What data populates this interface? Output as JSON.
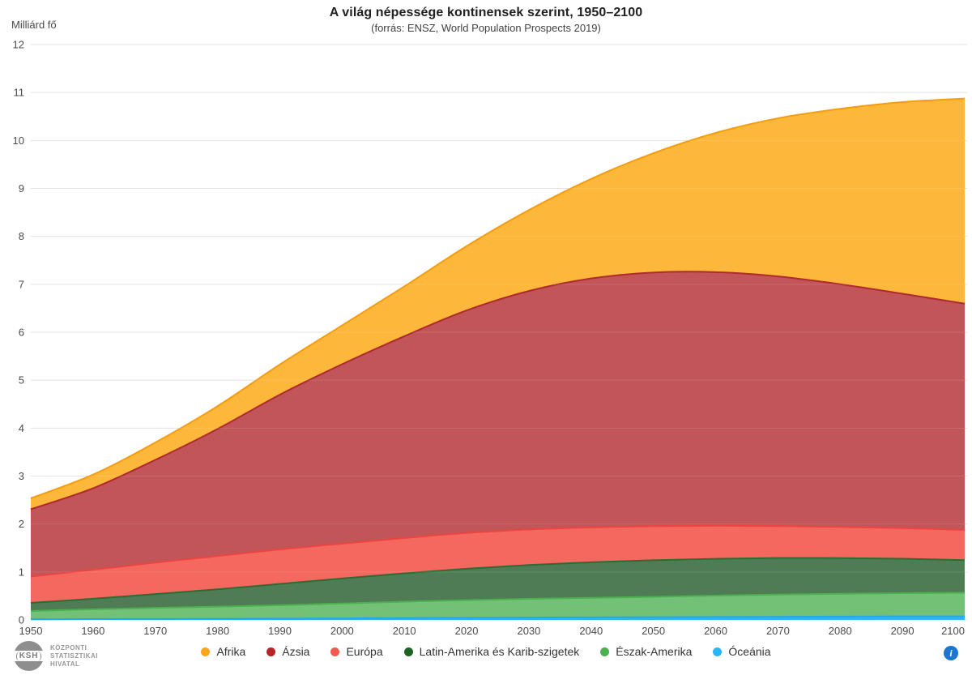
{
  "header": {
    "title": "A világ népessége kontinensek szerint, 1950–2100",
    "subtitle": "(forrás: ENSZ, World Population Prospects 2019)"
  },
  "y_axis": {
    "title": "Milliárd fő",
    "ticks": [
      0,
      1,
      2,
      3,
      4,
      5,
      6,
      7,
      8,
      9,
      10,
      11,
      12
    ]
  },
  "x_axis": {
    "ticks": [
      1950,
      1960,
      1970,
      1980,
      1990,
      2000,
      2010,
      2020,
      2030,
      2040,
      2050,
      2060,
      2070,
      2080,
      2090,
      2100
    ]
  },
  "chart_data": {
    "type": "area",
    "stacked": true,
    "title": "A világ népessége kontinensek szerint, 1950–2100",
    "subtitle": "(forrás: ENSZ, World Population Prospects 2019)",
    "xlabel": "",
    "ylabel": "Milliárd fő",
    "ylim": [
      0,
      12
    ],
    "grid": true,
    "legend_position": "bottom",
    "x": [
      1950,
      1960,
      1970,
      1980,
      1990,
      2000,
      2010,
      2020,
      2030,
      2040,
      2050,
      2060,
      2070,
      2080,
      2090,
      2100
    ],
    "series_bottom_to_top": [
      {
        "id": "oceania",
        "name": "Óceánia",
        "fill": "#2FB5F2",
        "line": "#25A9E6",
        "legend_color": "#29B6F6",
        "values": [
          0.013,
          0.016,
          0.02,
          0.023,
          0.027,
          0.031,
          0.037,
          0.043,
          0.048,
          0.053,
          0.057,
          0.062,
          0.066,
          0.07,
          0.073,
          0.075
        ]
      },
      {
        "id": "eszak-amerika",
        "name": "Észak-Amerika",
        "fill": "#73C177",
        "line": "#4CAF50",
        "legend_color": "#4CAF50",
        "values": [
          0.173,
          0.205,
          0.231,
          0.254,
          0.28,
          0.312,
          0.343,
          0.369,
          0.391,
          0.408,
          0.425,
          0.445,
          0.462,
          0.475,
          0.485,
          0.491
        ]
      },
      {
        "id": "latin-amerika",
        "name": "Latin-Amerika és Karib-szigetek",
        "fill": "#4F7C54",
        "line": "#2E6B33",
        "legend_color": "#1D6322",
        "values": [
          0.169,
          0.22,
          0.287,
          0.361,
          0.443,
          0.522,
          0.591,
          0.654,
          0.706,
          0.742,
          0.762,
          0.768,
          0.762,
          0.744,
          0.718,
          0.68
        ]
      },
      {
        "id": "europa",
        "name": "Európa",
        "fill": "#F4685F",
        "line": "#EC4540",
        "legend_color": "#F05A52",
        "values": [
          0.549,
          0.605,
          0.657,
          0.694,
          0.721,
          0.726,
          0.736,
          0.748,
          0.741,
          0.729,
          0.711,
          0.689,
          0.667,
          0.65,
          0.638,
          0.63
        ]
      },
      {
        "id": "azsia",
        "name": "Ázsia",
        "fill": "#C2555A",
        "line": "#AF2A30",
        "legend_color": "#B92227",
        "values": [
          1.405,
          1.7,
          2.142,
          2.65,
          3.226,
          3.741,
          4.21,
          4.641,
          4.974,
          5.189,
          5.29,
          5.289,
          5.207,
          5.063,
          4.889,
          4.719
        ]
      },
      {
        "id": "afrika",
        "name": "Afrika",
        "fill": "#FDB73B",
        "line": "#F59D0E",
        "legend_color": "#F9A51D",
        "values": [
          0.228,
          0.285,
          0.363,
          0.476,
          0.63,
          0.811,
          1.039,
          1.341,
          1.688,
          2.077,
          2.489,
          2.905,
          3.299,
          3.658,
          3.997,
          4.28
        ]
      }
    ]
  },
  "legend": {
    "items": [
      {
        "id": "afrika",
        "label": "Afrika",
        "color": "#F9A51D"
      },
      {
        "id": "azsia",
        "label": "Ázsia",
        "color": "#B92227"
      },
      {
        "id": "europa",
        "label": "Európa",
        "color": "#F05A52"
      },
      {
        "id": "latin-amerika",
        "label": "Latin-Amerika és Karib-szigetek",
        "color": "#1D6322"
      },
      {
        "id": "eszak-amerika",
        "label": "Észak-Amerika",
        "color": "#4CAF50"
      },
      {
        "id": "oceania",
        "label": "Óceánia",
        "color": "#29B6F6"
      }
    ]
  },
  "footer": {
    "logo": {
      "abbr": "KSH",
      "lines": [
        "KÖZPONTI",
        "STATISZTIKAI",
        "HIVATAL"
      ]
    },
    "info_icon_label": "i"
  },
  "palette": {
    "grid": "#E0E0E0",
    "grid_overlay": "rgba(255,255,255,0.12)",
    "axis_text": "#4A4A4A",
    "title_text": "#212121",
    "legend_text": "#333333",
    "info_blue": "#1C76D2",
    "logo_gray": "#8E8E8E"
  }
}
